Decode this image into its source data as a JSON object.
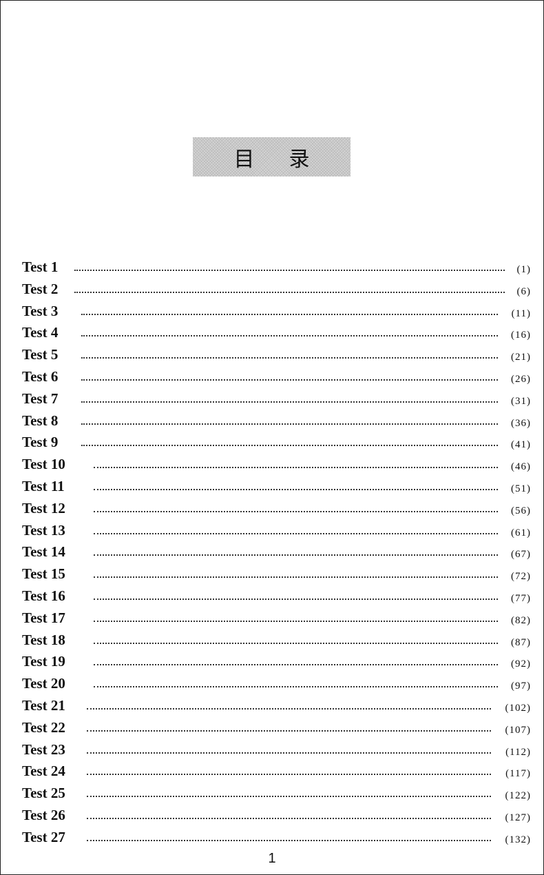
{
  "title": {
    "char1": "目",
    "char2": "录"
  },
  "toc": [
    {
      "label": "Test 1",
      "page": "(1)"
    },
    {
      "label": "Test 2",
      "page": "(6)"
    },
    {
      "label": "Test 3",
      "page": "(11)"
    },
    {
      "label": "Test 4",
      "page": "(16)"
    },
    {
      "label": "Test 5",
      "page": "(21)"
    },
    {
      "label": "Test 6",
      "page": "(26)"
    },
    {
      "label": "Test 7",
      "page": "(31)"
    },
    {
      "label": "Test 8",
      "page": "(36)"
    },
    {
      "label": "Test 9",
      "page": "(41)"
    },
    {
      "label": "Test 10",
      "page": "(46)"
    },
    {
      "label": "Test 11",
      "page": "(51)"
    },
    {
      "label": "Test 12",
      "page": "(56)"
    },
    {
      "label": "Test 13",
      "page": "(61)"
    },
    {
      "label": "Test 14",
      "page": "(67)"
    },
    {
      "label": "Test 15",
      "page": "(72)"
    },
    {
      "label": "Test 16",
      "page": "(77)"
    },
    {
      "label": "Test 17",
      "page": "(82)"
    },
    {
      "label": "Test 18",
      "page": "(87)"
    },
    {
      "label": "Test 19",
      "page": "(92)"
    },
    {
      "label": "Test 20",
      "page": "(97)"
    },
    {
      "label": "Test 21",
      "page": "(102)"
    },
    {
      "label": "Test 22",
      "page": "(107)"
    },
    {
      "label": "Test 23",
      "page": "(112)"
    },
    {
      "label": "Test 24",
      "page": "(117)"
    },
    {
      "label": "Test 25",
      "page": "(122)"
    },
    {
      "label": "Test 26",
      "page": "(127)"
    },
    {
      "label": "Test 27",
      "page": "(132)"
    }
  ],
  "page_number": "1"
}
